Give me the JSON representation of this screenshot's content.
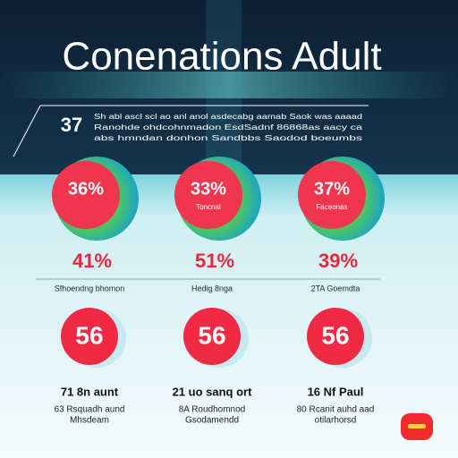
{
  "header": {
    "title": "Conenations Adult",
    "number": "37",
    "lines": [
      "Sh abl ascl scl ao anl anol asdecabg aamab Saok was aaaad",
      "Ranohde ohdcohnmadon EsdSadnf 86868as aacy ca",
      "abs hmndan donhon Sandbbs Saodod boeumbs"
    ]
  },
  "cards": [
    {
      "percent": "36%",
      "sub": "",
      "stat": "41%",
      "caption": "Sfhoendng bhomon"
    },
    {
      "percent": "33%",
      "sub": "Toncnal",
      "stat": "51%",
      "caption": "Hedig 8nga"
    },
    {
      "percent": "37%",
      "sub": "Faceonas",
      "stat": "39%",
      "caption": "2TA Goemdta"
    }
  ],
  "items": [
    {
      "value": "56",
      "title": "71 8n aunt",
      "lines": [
        "63 Rsquadh aund",
        "Mhsdeam"
      ]
    },
    {
      "value": "56",
      "title": "21 uo sanq ort",
      "lines": [
        "8A Roudhomnod",
        "Gsodamendd"
      ]
    },
    {
      "value": "56",
      "title": "16 Nf Paul",
      "lines": [
        "80 Rcanit auhd aad",
        "otilarhorsd"
      ]
    }
  ]
}
